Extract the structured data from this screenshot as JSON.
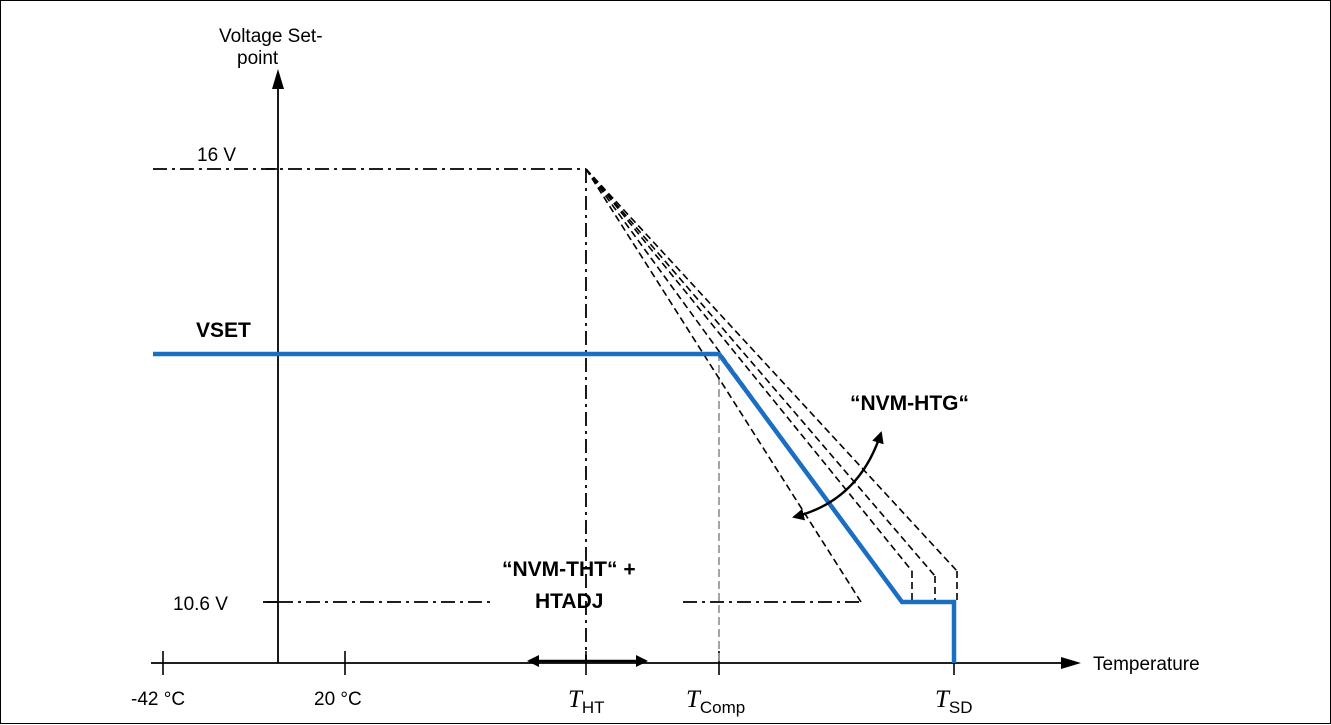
{
  "axes": {
    "y_label_line1": "Voltage Set-",
    "y_label_line2": "point",
    "x_label": "Temperature"
  },
  "y_levels": {
    "v_max": "16 V",
    "v_min": "10.6 V"
  },
  "x_ticks": {
    "t1": "-42 °C",
    "t2": "20 °C"
  },
  "markers": {
    "t_ht": {
      "var": "T",
      "sub": "HT"
    },
    "t_comp": {
      "var": "T",
      "sub": "Comp"
    },
    "t_sd": {
      "var": "T",
      "sub": "SD"
    }
  },
  "curve_label": "VSET",
  "annotations": {
    "htg": "“NVM-HTG“",
    "tht_line1": "“NVM-THT“ +",
    "tht_line2": "HTADJ"
  },
  "colors": {
    "curve": "#1a6fc2",
    "comp_line": "#9a9a9a",
    "ink": "#000000"
  }
}
